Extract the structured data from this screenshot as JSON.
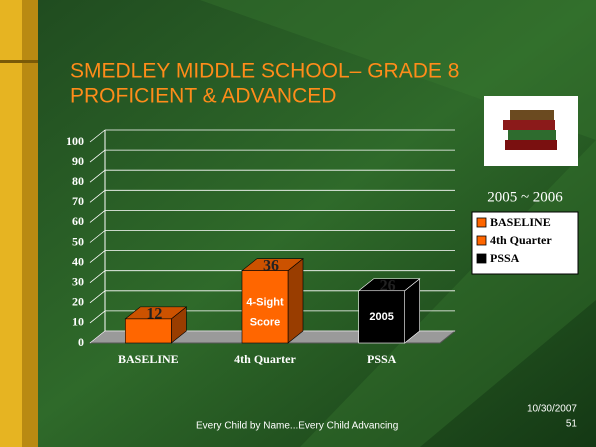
{
  "chart_data": {
    "type": "bar3d",
    "title": [
      "SMEDLEY MIDDLE SCHOOL– GRADE 8",
      "PROFICIENT & ADVANCED"
    ],
    "categories": [
      "BASELINE",
      "4th Quarter",
      "PSSA"
    ],
    "values": [
      12,
      36,
      26
    ],
    "colors": [
      "#ff6600",
      "#ff6600",
      "#000000"
    ],
    "annotations": [
      null,
      [
        "4-Sight",
        "Score"
      ],
      [
        "2005"
      ]
    ],
    "ylim": [
      0,
      100
    ],
    "yticks": [
      0,
      10,
      20,
      30,
      40,
      50,
      60,
      70,
      80,
      90,
      100
    ],
    "grid": true,
    "legend_title": "2005 ~ 2006"
  },
  "footer": {
    "text": "Every Child by Name...Every Child Advancing",
    "date": "10/30/2007",
    "page": "51"
  }
}
